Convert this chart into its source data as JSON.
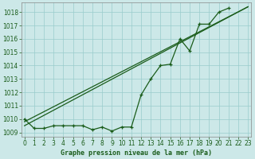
{
  "title": "Graphe pression niveau de la mer (hPa)",
  "bg_color": "#cce8e8",
  "grid_color": "#99cccc",
  "line_color": "#1a5c1a",
  "x_ticks": [
    0,
    1,
    2,
    3,
    4,
    5,
    6,
    7,
    8,
    9,
    10,
    11,
    12,
    13,
    14,
    15,
    16,
    17,
    18,
    19,
    20,
    21,
    22,
    23
  ],
  "y_ticks": [
    1009,
    1010,
    1011,
    1012,
    1013,
    1014,
    1015,
    1016,
    1017,
    1018
  ],
  "ylim": [
    1008.7,
    1018.7
  ],
  "xlim": [
    -0.3,
    23.3
  ],
  "series_marker": [
    1010.0,
    1009.3,
    1009.3,
    1009.5,
    1009.5,
    1009.5,
    1009.5,
    1009.2,
    1009.4,
    1009.1,
    1009.4,
    1009.4,
    1011.8,
    1013.0,
    1014.0,
    1014.1,
    1016.0,
    1015.1,
    1017.1,
    1017.1,
    1018.0,
    1018.3,
    null,
    null
  ],
  "line1_x": [
    0,
    23
  ],
  "line1_y": [
    1009.5,
    1018.4
  ],
  "line2_x": [
    0,
    23
  ],
  "line2_y": [
    1009.8,
    1018.4
  ],
  "tick_fontsize": 5.5,
  "xlabel_fontsize": 6.0
}
